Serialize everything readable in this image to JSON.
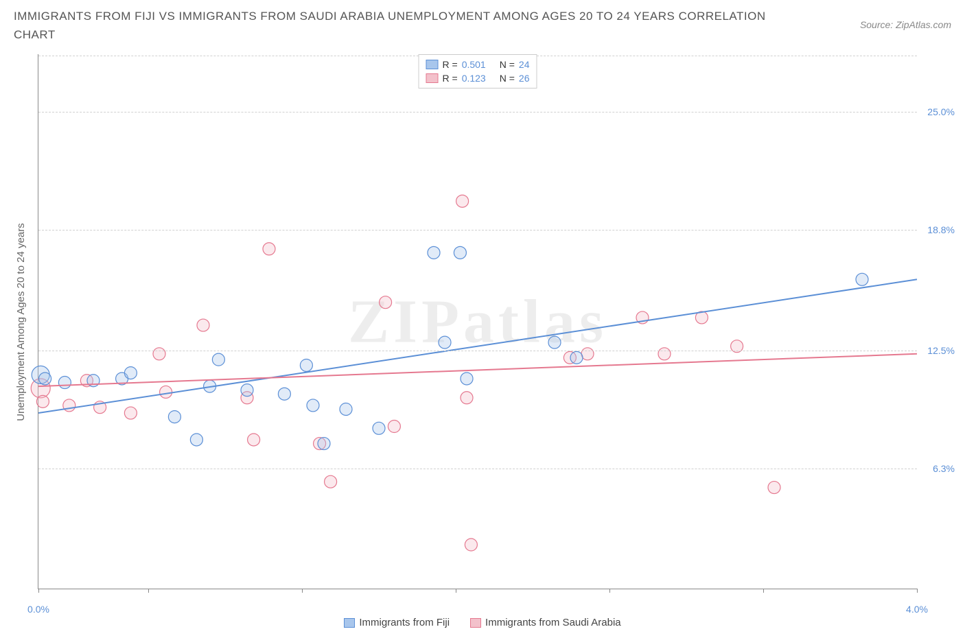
{
  "title": "IMMIGRANTS FROM FIJI VS IMMIGRANTS FROM SAUDI ARABIA UNEMPLOYMENT AMONG AGES 20 TO 24 YEARS CORRELATION CHART",
  "source": "Source: ZipAtlas.com",
  "ylabel": "Unemployment Among Ages 20 to 24 years",
  "watermark": "ZIPatlas",
  "chart": {
    "type": "scatter",
    "xlim": [
      0.0,
      4.0
    ],
    "ylim": [
      0.0,
      28.0
    ],
    "xticks": [
      {
        "v": 0.0,
        "label": "0.0%"
      },
      {
        "v": 0.5,
        "label": ""
      },
      {
        "v": 1.2,
        "label": ""
      },
      {
        "v": 1.9,
        "label": ""
      },
      {
        "v": 2.6,
        "label": ""
      },
      {
        "v": 3.3,
        "label": ""
      },
      {
        "v": 4.0,
        "label": "4.0%"
      }
    ],
    "yticks": [
      {
        "v": 6.3,
        "label": "6.3%"
      },
      {
        "v": 12.5,
        "label": "12.5%"
      },
      {
        "v": 18.8,
        "label": "18.8%"
      },
      {
        "v": 25.0,
        "label": "25.0%"
      }
    ],
    "grid_color": "#d0d0d0",
    "background_color": "#ffffff",
    "axis_color": "#888888",
    "tick_label_color": "#5b8fd6",
    "marker_radius": 9,
    "marker_fill_opacity": 0.35,
    "marker_stroke_width": 1.2,
    "trend_stroke_width": 2
  },
  "series": [
    {
      "name": "Immigrants from Fiji",
      "color_fill": "#a8c6ec",
      "color_stroke": "#5b8fd6",
      "trend": {
        "x1": 0.0,
        "y1": 9.2,
        "x2": 4.0,
        "y2": 16.2
      },
      "R": "0.501",
      "N": "24",
      "points": [
        {
          "x": 0.01,
          "y": 11.2,
          "r": 13
        },
        {
          "x": 0.03,
          "y": 11.0
        },
        {
          "x": 0.12,
          "y": 10.8
        },
        {
          "x": 0.25,
          "y": 10.9
        },
        {
          "x": 0.38,
          "y": 11.0
        },
        {
          "x": 0.42,
          "y": 11.3
        },
        {
          "x": 0.62,
          "y": 9.0
        },
        {
          "x": 0.72,
          "y": 7.8
        },
        {
          "x": 0.78,
          "y": 10.6
        },
        {
          "x": 0.82,
          "y": 12.0
        },
        {
          "x": 0.95,
          "y": 10.4
        },
        {
          "x": 1.12,
          "y": 10.2
        },
        {
          "x": 1.22,
          "y": 11.7
        },
        {
          "x": 1.25,
          "y": 9.6
        },
        {
          "x": 1.3,
          "y": 7.6
        },
        {
          "x": 1.4,
          "y": 9.4
        },
        {
          "x": 1.55,
          "y": 8.4
        },
        {
          "x": 1.8,
          "y": 17.6
        },
        {
          "x": 1.92,
          "y": 17.6
        },
        {
          "x": 1.85,
          "y": 12.9
        },
        {
          "x": 1.95,
          "y": 11.0
        },
        {
          "x": 2.35,
          "y": 12.9
        },
        {
          "x": 2.45,
          "y": 12.1
        },
        {
          "x": 3.75,
          "y": 16.2
        }
      ]
    },
    {
      "name": "Immigrants from Saudi Arabia",
      "color_fill": "#f3c1cb",
      "color_stroke": "#e5788f",
      "trend": {
        "x1": 0.0,
        "y1": 10.6,
        "x2": 4.0,
        "y2": 12.3
      },
      "R": "0.123",
      "N": "26",
      "points": [
        {
          "x": 0.01,
          "y": 10.5,
          "r": 14
        },
        {
          "x": 0.02,
          "y": 9.8
        },
        {
          "x": 0.14,
          "y": 9.6
        },
        {
          "x": 0.22,
          "y": 10.9
        },
        {
          "x": 0.28,
          "y": 9.5
        },
        {
          "x": 0.42,
          "y": 9.2
        },
        {
          "x": 0.55,
          "y": 12.3
        },
        {
          "x": 0.58,
          "y": 10.3
        },
        {
          "x": 0.75,
          "y": 13.8
        },
        {
          "x": 0.95,
          "y": 10.0
        },
        {
          "x": 0.98,
          "y": 7.8
        },
        {
          "x": 1.05,
          "y": 17.8
        },
        {
          "x": 1.28,
          "y": 7.6
        },
        {
          "x": 1.33,
          "y": 5.6
        },
        {
          "x": 1.58,
          "y": 15.0
        },
        {
          "x": 1.62,
          "y": 8.5
        },
        {
          "x": 1.93,
          "y": 20.3
        },
        {
          "x": 1.95,
          "y": 10.0
        },
        {
          "x": 1.97,
          "y": 2.3
        },
        {
          "x": 2.42,
          "y": 12.1
        },
        {
          "x": 2.75,
          "y": 14.2
        },
        {
          "x": 2.85,
          "y": 12.3
        },
        {
          "x": 3.02,
          "y": 14.2
        },
        {
          "x": 3.18,
          "y": 12.7
        },
        {
          "x": 3.35,
          "y": 5.3
        },
        {
          "x": 2.5,
          "y": 12.3
        }
      ]
    }
  ],
  "legend_top": {
    "r_label": "R =",
    "n_label": "N ="
  },
  "legend_bottom_labels": [
    "Immigrants from Fiji",
    "Immigrants from Saudi Arabia"
  ]
}
